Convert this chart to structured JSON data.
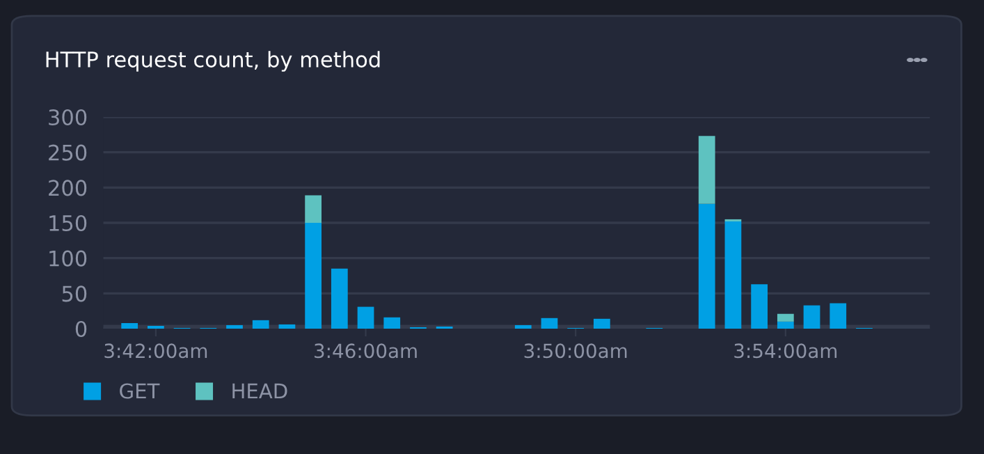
{
  "chart_data": {
    "type": "bar",
    "title": "HTTP request count, by method",
    "stacked": true,
    "categories": [
      null,
      "3:42:00am",
      null,
      null,
      null,
      null,
      null,
      null,
      null,
      "3:46:00am",
      null,
      null,
      null,
      null,
      null,
      null,
      null,
      "3:50:00am",
      null,
      null,
      null,
      null,
      null,
      null,
      null,
      "3:54:00am",
      null,
      null,
      null,
      null
    ],
    "series": [
      {
        "name": "GET",
        "color": "#00a0e4",
        "values": [
          8,
          4,
          1,
          1,
          5,
          12,
          6,
          150,
          85,
          31,
          16,
          2,
          3,
          0,
          0,
          5,
          15,
          1,
          14,
          0,
          1,
          0,
          177,
          152,
          63,
          10,
          33,
          36,
          1,
          0
        ]
      },
      {
        "name": "HEAD",
        "color": "#5ec2c0",
        "values": [
          0,
          0,
          0,
          0,
          0,
          0,
          0,
          39,
          0,
          0,
          0,
          0,
          0,
          0,
          0,
          0,
          0,
          0,
          0,
          0,
          0,
          0,
          96,
          3,
          0,
          11,
          0,
          0,
          0,
          0
        ]
      }
    ],
    "ylim": [
      0,
      300
    ],
    "yticks": [
      0,
      50,
      100,
      150,
      200,
      250,
      300
    ],
    "grid": "y",
    "legend": "bottom left"
  }
}
